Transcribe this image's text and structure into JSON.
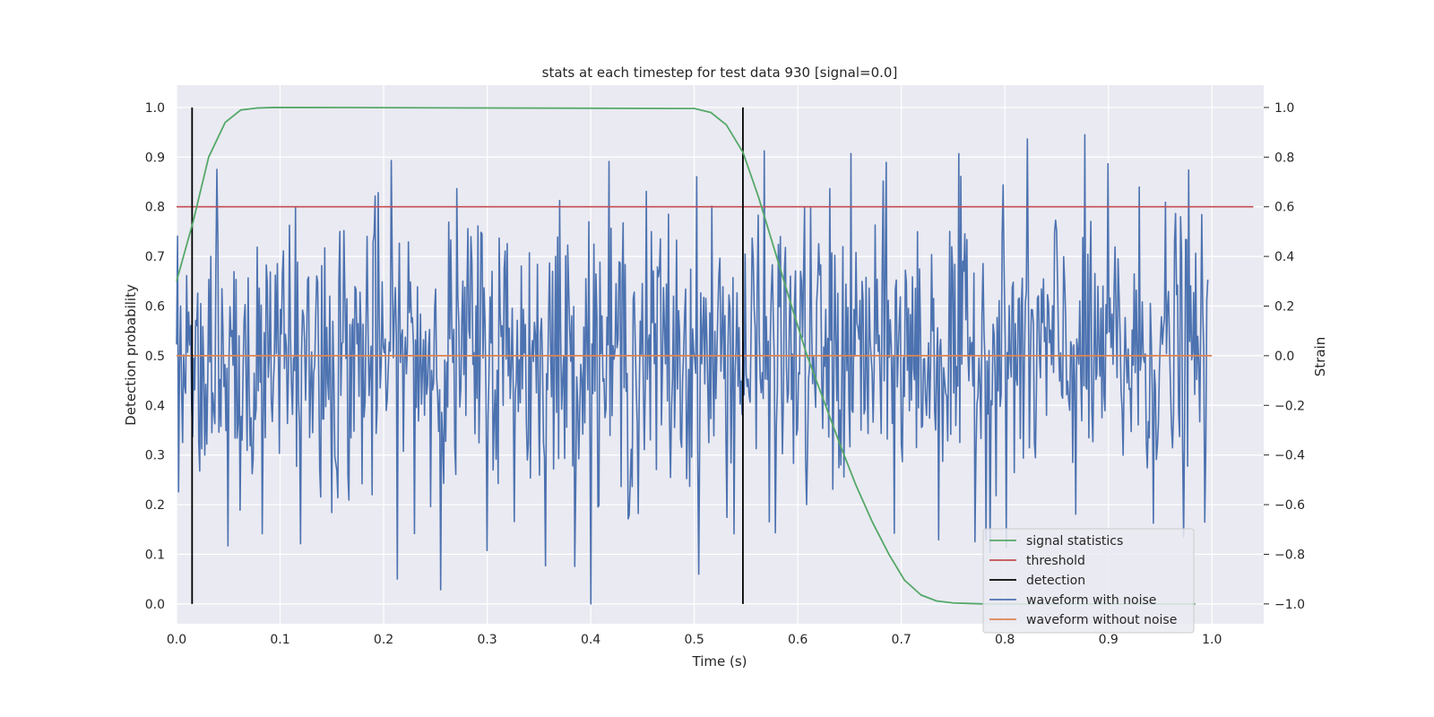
{
  "chart_data": {
    "type": "line",
    "title": "stats at each timestep for test data 930 [signal=0.0]",
    "xlabel": "Time (s)",
    "ylabel": "Detection probability",
    "ylabel_right": "Strain",
    "xlim": [
      0.0,
      1.05
    ],
    "ylim": [
      -0.04,
      1.045
    ],
    "ylim_right": [
      -1.08,
      1.09
    ],
    "x_ticks": [
      "0.0",
      "0.1",
      "0.2",
      "0.3",
      "0.4",
      "0.5",
      "0.6",
      "0.7",
      "0.8",
      "0.9",
      "1.0"
    ],
    "y_ticks": [
      "0.0",
      "0.1",
      "0.2",
      "0.3",
      "0.4",
      "0.5",
      "0.6",
      "0.7",
      "0.8",
      "0.9",
      "1.0"
    ],
    "y_ticks_right": [
      "−1.0",
      "−0.8",
      "−0.6",
      "−0.4",
      "−0.2",
      "0.0",
      "0.2",
      "0.4",
      "0.6",
      "0.8",
      "1.0"
    ],
    "grid": true,
    "legend_position": "lower-right",
    "series": [
      {
        "name": "signal statistics",
        "color": "#55a868",
        "axis": "left",
        "x": [
          0.0,
          0.016,
          0.031,
          0.047,
          0.062,
          0.078,
          0.094,
          0.109,
          0.125,
          0.5,
          0.516,
          0.531,
          0.547,
          0.562,
          0.578,
          0.594,
          0.609,
          0.625,
          0.641,
          0.656,
          0.672,
          0.688,
          0.703,
          0.719,
          0.734,
          0.75,
          0.766,
          0.781,
          0.797,
          0.984
        ],
        "values": [
          0.65,
          0.77,
          0.9,
          0.97,
          0.995,
          0.999,
          1.0,
          1.0,
          1.0,
          0.998,
          0.99,
          0.965,
          0.91,
          0.82,
          0.71,
          0.6,
          0.5,
          0.41,
          0.32,
          0.24,
          0.165,
          0.1,
          0.048,
          0.018,
          0.006,
          0.002,
          0.001,
          0.0,
          0.0,
          0.0
        ]
      },
      {
        "name": "threshold",
        "color": "#c44e52",
        "axis": "left",
        "x": [
          0.0,
          1.04
        ],
        "values": [
          0.8,
          0.8
        ]
      },
      {
        "name": "detection",
        "color": "#000000",
        "axis": "left",
        "segments": [
          {
            "x": 0.015,
            "y": [
              0.0,
              1.0
            ]
          },
          {
            "x": 0.547,
            "y": [
              0.0,
              1.0
            ]
          }
        ]
      },
      {
        "name": "waveform with noise",
        "color": "#4c72b0",
        "axis": "right",
        "x_range": [
          0.0,
          0.996
        ],
        "num_points": 1024,
        "value_range": [
          -1.0,
          1.0
        ],
        "noise_std": 0.3
      },
      {
        "name": "waveform without noise",
        "color": "#dd8452",
        "axis": "right",
        "x": [
          0.0,
          1.0
        ],
        "values": [
          0.0,
          0.0
        ]
      }
    ]
  },
  "colors": {
    "plot_background": "#eaeaf2",
    "grid": "#ffffff",
    "text": "#262626"
  }
}
